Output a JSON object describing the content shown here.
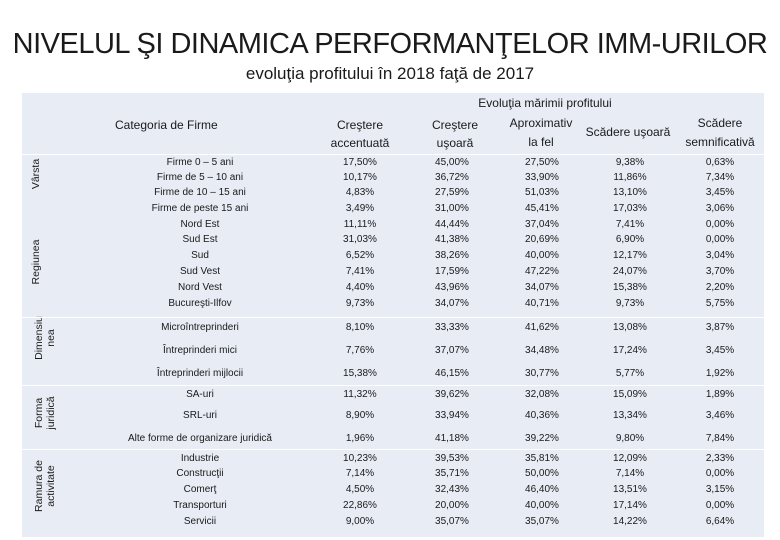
{
  "title": "NIVELUL ŞI DINAMICA PERFORMANŢELOR IMM-URILOR",
  "subtitle": "evoluţia profitului în 2018 faţă de 2017",
  "header": {
    "category": "Categoria de Firme",
    "group": "Evoluţia mărimii profitului",
    "col1_a": "Creştere",
    "col1_b": "accentuată",
    "col2_a": "Creştere",
    "col2_b": "uşoară",
    "col3_a": "Aproximativ",
    "col3_b": "la fel",
    "col4": "Scădere uşoară",
    "col5_a": "Scădere",
    "col5_b": "semnificativă"
  },
  "sections": [
    {
      "name": "Vârsta"
    },
    {
      "name": "Regiunea"
    },
    {
      "name_a": "Dimensiu",
      "name_b": "nea"
    },
    {
      "name_a": "Forma",
      "name_b": "juridică"
    },
    {
      "name_a": "Ramura de",
      "name_b": "activitate"
    }
  ],
  "rows": [
    {
      "label": "Firme 0 – 5 ani",
      "v": [
        "17,50%",
        "45,00%",
        "27,50%",
        "9,38%",
        "0,63%"
      ]
    },
    {
      "label": "Firme de 5 – 10 ani",
      "v": [
        "10,17%",
        "36,72%",
        "33,90%",
        "11,86%",
        "7,34%"
      ]
    },
    {
      "label": "Firme de 10 – 15 ani",
      "v": [
        "4,83%",
        "27,59%",
        "51,03%",
        "13,10%",
        "3,45%"
      ]
    },
    {
      "label": "Firme de peste 15 ani",
      "v": [
        "3,49%",
        "31,00%",
        "45,41%",
        "17,03%",
        "3,06%"
      ]
    },
    {
      "label": "Nord Est",
      "v": [
        "11,11%",
        "44,44%",
        "37,04%",
        "7,41%",
        "0,00%"
      ]
    },
    {
      "label": "Sud Est",
      "v": [
        "31,03%",
        "41,38%",
        "20,69%",
        "6,90%",
        "0,00%"
      ]
    },
    {
      "label": "Sud",
      "v": [
        "6,52%",
        "38,26%",
        "40,00%",
        "12,17%",
        "3,04%"
      ]
    },
    {
      "label": "Sud Vest",
      "v": [
        "7,41%",
        "17,59%",
        "47,22%",
        "24,07%",
        "3,70%"
      ]
    },
    {
      "label": "Nord Vest",
      "v": [
        "4,40%",
        "43,96%",
        "34,07%",
        "15,38%",
        "2,20%"
      ]
    },
    {
      "label": "Bucureşti-Ilfov",
      "v": [
        "9,73%",
        "34,07%",
        "40,71%",
        "9,73%",
        "5,75%"
      ]
    },
    {
      "label": "Microîntreprinderi",
      "v": [
        "8,10%",
        "33,33%",
        "41,62%",
        "13,08%",
        "3,87%"
      ]
    },
    {
      "label": "Întreprinderi mici",
      "v": [
        "7,76%",
        "37,07%",
        "34,48%",
        "17,24%",
        "3,45%"
      ]
    },
    {
      "label": "Întreprinderi mijlocii",
      "v": [
        "15,38%",
        "46,15%",
        "30,77%",
        "5,77%",
        "1,92%"
      ]
    },
    {
      "label": "SA-uri",
      "v": [
        "11,32%",
        "39,62%",
        "32,08%",
        "15,09%",
        "1,89%"
      ]
    },
    {
      "label": "SRL-uri",
      "v": [
        "8,90%",
        "33,94%",
        "40,36%",
        "13,34%",
        "3,46%"
      ]
    },
    {
      "label": "Alte forme de organizare juridică",
      "v": [
        "1,96%",
        "41,18%",
        "39,22%",
        "9,80%",
        "7,84%"
      ]
    },
    {
      "label": "Industrie",
      "v": [
        "10,23%",
        "39,53%",
        "35,81%",
        "12,09%",
        "2,33%"
      ]
    },
    {
      "label": "Construcţii",
      "v": [
        "7,14%",
        "35,71%",
        "50,00%",
        "7,14%",
        "0,00%"
      ]
    },
    {
      "label": "Comerţ",
      "v": [
        "4,50%",
        "32,43%",
        "46,40%",
        "13,51%",
        "3,15%"
      ]
    },
    {
      "label": "Transporturi",
      "v": [
        "22,86%",
        "20,00%",
        "40,00%",
        "17,14%",
        "0,00%"
      ]
    },
    {
      "label": "Servicii",
      "v": [
        "9,00%",
        "35,07%",
        "35,07%",
        "14,22%",
        "6,64%"
      ]
    }
  ]
}
